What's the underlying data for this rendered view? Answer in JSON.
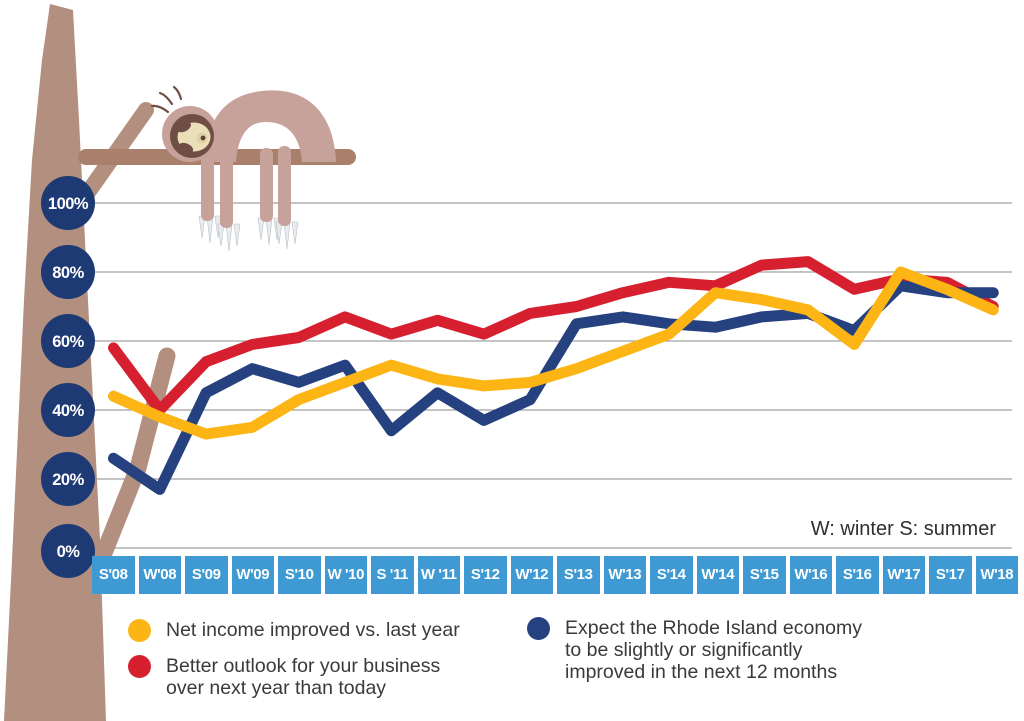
{
  "note": "W: winter S: summer",
  "y_axis": {
    "tick_labels": [
      "100%",
      "80%",
      "60%",
      "40%",
      "20%",
      "0%"
    ]
  },
  "chart_data": {
    "type": "line",
    "categories": [
      "S'08",
      "W'08",
      "S'09",
      "W'09",
      "S'10",
      "W '10",
      "S '11",
      "W '11",
      "S'12",
      "W'12",
      "S'13",
      "W'13",
      "S'14",
      "W'14",
      "S'15",
      "W'16",
      "S'16",
      "W'17",
      "S'17",
      "W'18"
    ],
    "x_axis_note": "W: winter S: summer",
    "ylim": [
      0,
      100
    ],
    "y_tick_labels": [
      "100%",
      "80%",
      "60%",
      "40%",
      "20%",
      "0%"
    ],
    "grid": true,
    "legend_position": "bottom",
    "series": [
      {
        "id": "outlook",
        "name": "Better outlook for your business over next year than today",
        "color": "#d6202f",
        "values": [
          58,
          40,
          54,
          59,
          61,
          67,
          62,
          66,
          62,
          68,
          70,
          74,
          77,
          76,
          82,
          83,
          75,
          78,
          77,
          70
        ]
      },
      {
        "id": "economy",
        "name": "Expect the Rhode Island economy to be slightly or significantly improved in the next 12 months",
        "color": "#25417f",
        "values": [
          26,
          17,
          45,
          52,
          48,
          53,
          34,
          45,
          37,
          43,
          65,
          67,
          65,
          64,
          67,
          68,
          63,
          76,
          74,
          74
        ]
      },
      {
        "id": "net_income",
        "name": "Net income improved vs. last year",
        "color": "#fcb515",
        "values": [
          44,
          38,
          33,
          35,
          43,
          48,
          53,
          49,
          47,
          48,
          52,
          57,
          62,
          74,
          72,
          69,
          59,
          80,
          75,
          69
        ]
      }
    ]
  },
  "legend": {
    "items": [
      {
        "id": "net_income",
        "color": "#fcb515",
        "lines": [
          "Net income improved vs. last year",
          "",
          ""
        ]
      },
      {
        "id": "outlook",
        "color": "#d6202f",
        "lines": [
          "Better outlook for your business",
          "over next year than today",
          ""
        ]
      },
      {
        "id": "economy",
        "color": "#25417f",
        "lines": [
          "Expect the Rhode Island economy",
          "to be slightly or significantly",
          "improved in the next 12 months"
        ]
      }
    ]
  },
  "colors": {
    "axis_band": "#3f9ad3",
    "axis_circle": "#1d3a75",
    "gridline": "#a0a0a0",
    "trunk": "#b28f7e",
    "branch": "#a9806c"
  }
}
